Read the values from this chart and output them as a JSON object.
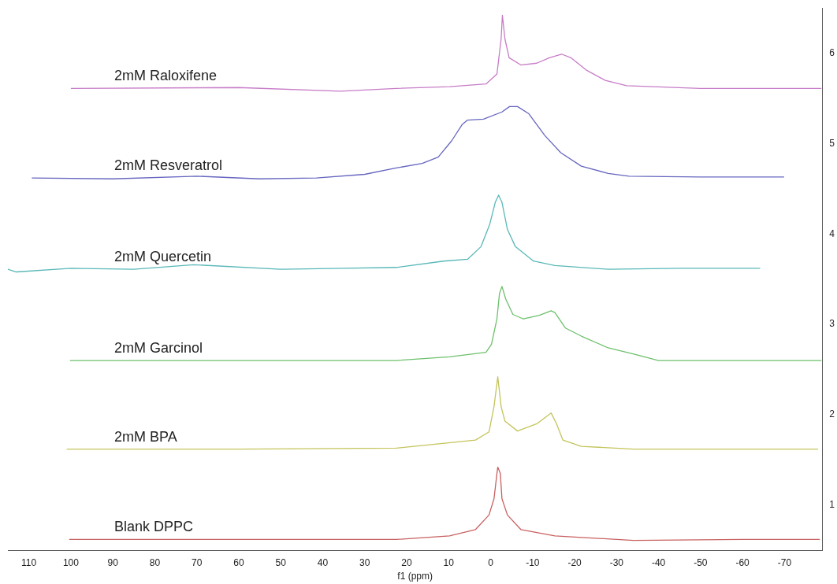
{
  "chart_data": {
    "type": "line",
    "xlabel": "f1 (ppm)",
    "xlim": [
      115,
      -79
    ],
    "xticks": [
      110,
      100,
      90,
      80,
      70,
      60,
      50,
      40,
      30,
      20,
      10,
      0,
      -10,
      -20,
      -30,
      -40,
      -50,
      -60,
      -70
    ],
    "ylim": [
      0.5,
      6.5
    ],
    "yticks": [
      1,
      2,
      3,
      4,
      5,
      6
    ],
    "grid": false,
    "legend": false,
    "series": [
      {
        "name": "2mM Raloxifene",
        "color": "#c77cc7",
        "x": [
          100,
          60,
          35.8,
          22.5,
          9.8,
          1.1,
          -1.5,
          -2.5,
          -2.8,
          -3.4,
          -4.4,
          -7.2,
          -11,
          -14,
          -16.9,
          -19.1,
          -22.9,
          -27.3,
          -32.4,
          -50,
          -78.8
        ],
        "values": [
          5.61,
          5.62,
          5.58,
          5.61,
          5.63,
          5.66,
          5.77,
          6.16,
          6.42,
          6.16,
          5.95,
          5.87,
          5.89,
          5.95,
          5.99,
          5.95,
          5.81,
          5.7,
          5.64,
          5.61,
          5.61
        ]
      },
      {
        "name": "2mM Resveratrol",
        "color": "#6666c0",
        "x": [
          109.3,
          90,
          70,
          55,
          41.5,
          30,
          22.5,
          16.3,
          12.5,
          9.3,
          6.8,
          5.5,
          1.7,
          -2.7,
          -4.5,
          -6.4,
          -9.1,
          -12.9,
          -16.7,
          -21.6,
          -28,
          -33,
          -50,
          -69.9
        ],
        "values": [
          4.62,
          4.61,
          4.64,
          4.61,
          4.62,
          4.66,
          4.73,
          4.78,
          4.85,
          5.03,
          5.21,
          5.26,
          5.27,
          5.35,
          5.41,
          5.41,
          5.33,
          5.09,
          4.9,
          4.75,
          4.67,
          4.64,
          4.63,
          4.63
        ]
      },
      {
        "name": "2mM Quercetin",
        "color": "#5ab8b8",
        "x": [
          115,
          113,
          100,
          85,
          70.8,
          50,
          35,
          22.5,
          11.2,
          5.5,
          2.3,
          0.2,
          -1.1,
          -1.9,
          -2.7,
          -4,
          -5.9,
          -10.2,
          -15.3,
          -28,
          -45,
          -64.2
        ],
        "values": [
          3.61,
          3.58,
          3.62,
          3.61,
          3.66,
          3.61,
          3.62,
          3.63,
          3.7,
          3.72,
          3.86,
          4.11,
          4.35,
          4.43,
          4.35,
          4.05,
          3.86,
          3.7,
          3.65,
          3.61,
          3.62,
          3.62
        ]
      },
      {
        "name": "2mM Garcinol",
        "color": "#6cc06c",
        "x": [
          100.2,
          60,
          22.5,
          9.8,
          1.1,
          -0.2,
          -1.5,
          -2.1,
          -2.7,
          -3.6,
          -5.3,
          -7.8,
          -11.6,
          -14.4,
          -15.3,
          -17.8,
          -21.6,
          -28,
          -34.3,
          -40,
          -60,
          -78.8
        ],
        "values": [
          2.6,
          2.6,
          2.6,
          2.64,
          2.69,
          2.78,
          3.06,
          3.34,
          3.42,
          3.28,
          3.11,
          3.06,
          3.1,
          3.15,
          3.13,
          2.96,
          2.87,
          2.74,
          2.67,
          2.6,
          2.6,
          2.6
        ]
      },
      {
        "name": "2mM BPA",
        "color": "#c4c45c",
        "x": [
          101,
          60,
          22.5,
          3.6,
          0.4,
          -0.8,
          -1.7,
          -2.5,
          -3.4,
          -6.4,
          -11,
          -14.4,
          -15.7,
          -17.2,
          -21.6,
          -34,
          -60,
          -78
        ],
        "values": [
          1.62,
          1.62,
          1.63,
          1.72,
          1.81,
          2.09,
          2.42,
          2.09,
          1.93,
          1.82,
          1.9,
          2.02,
          1.9,
          1.72,
          1.65,
          1.62,
          1.62,
          1.62
        ]
      },
      {
        "name": "Blank DPPC",
        "color": "#c86060",
        "x": [
          100.4,
          60,
          22.5,
          9.8,
          3.6,
          0.4,
          -0.8,
          -1.5,
          -1.7,
          -2.3,
          -2.7,
          -4,
          -7.2,
          -15.3,
          -34,
          -60,
          -78.4
        ],
        "values": [
          0.62,
          0.62,
          0.62,
          0.66,
          0.73,
          0.89,
          1.07,
          1.35,
          1.42,
          1.35,
          1.07,
          0.89,
          0.73,
          0.66,
          0.61,
          0.62,
          0.62
        ]
      }
    ]
  }
}
